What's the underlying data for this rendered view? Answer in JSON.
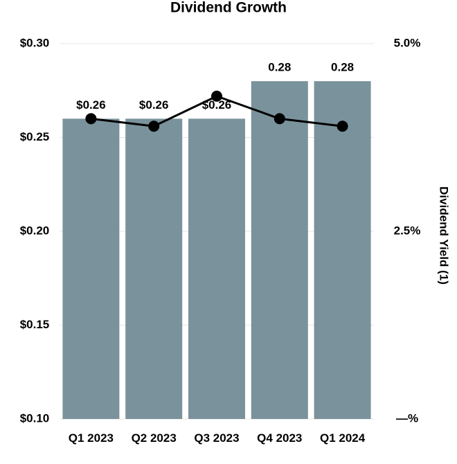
{
  "chart_data": {
    "type": "bar",
    "title": "Dividend Growth",
    "categories": [
      "Q1 2023",
      "Q2 2023",
      "Q3 2023",
      "Q4 2023",
      "Q1 2024"
    ],
    "series": [
      {
        "type": "bar",
        "color": "#7a929c",
        "values": [
          0.26,
          0.26,
          0.26,
          0.28,
          0.28
        ],
        "value_labels": [
          "$0.26",
          "$0.26",
          "$0.26",
          "0.28",
          "0.28"
        ]
      },
      {
        "type": "line",
        "axis": "y2",
        "color": "#000000",
        "values": [
          4.0,
          3.9,
          4.3,
          4.0,
          3.9
        ]
      }
    ],
    "ylim": [
      0.1,
      0.3
    ],
    "yticks": [
      {
        "value": 0.1,
        "label": "$0.10"
      },
      {
        "value": 0.15,
        "label": "$0.15"
      },
      {
        "value": 0.2,
        "label": "$0.20"
      },
      {
        "value": 0.25,
        "label": "$0.25"
      },
      {
        "value": 0.3,
        "label": "$0.30"
      }
    ],
    "y2lim": [
      0,
      5
    ],
    "y2ticks": [
      {
        "value": 0,
        "label": "—%"
      },
      {
        "value": 2.5,
        "label": "2.5%"
      },
      {
        "value": 5,
        "label": "5.0%"
      }
    ],
    "y2label": "Dividend Yield (1)",
    "grid": true
  }
}
